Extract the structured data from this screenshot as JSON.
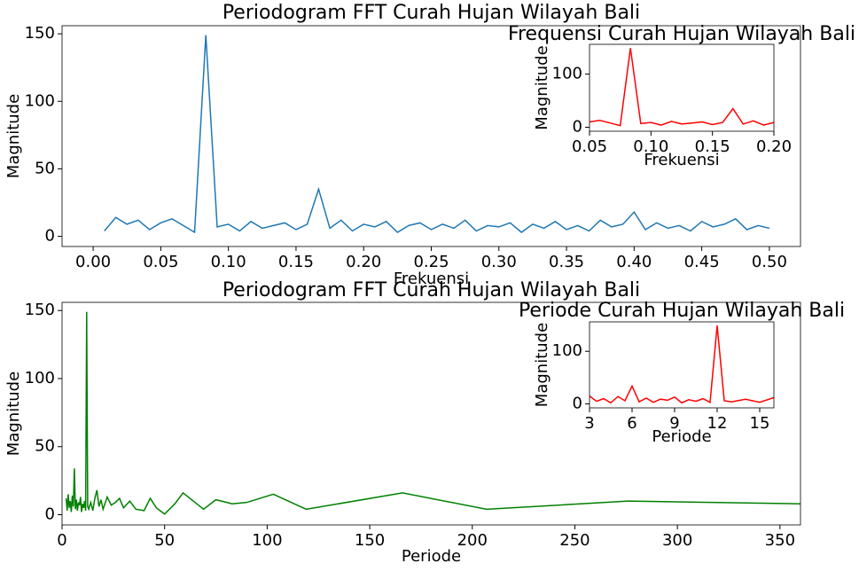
{
  "chart_data": [
    {
      "type": "line",
      "title": "Periodogram FFT Curah Hujan Wilayah Bali",
      "x_label": "Frekuensi",
      "y_label": "Magnitude",
      "x": [
        0.0083,
        0.0167,
        0.025,
        0.0333,
        0.0417,
        0.05,
        0.0583,
        0.0667,
        0.075,
        0.0833,
        0.0917,
        0.1,
        0.1083,
        0.1167,
        0.125,
        0.1333,
        0.1417,
        0.15,
        0.1583,
        0.1667,
        0.175,
        0.1833,
        0.1917,
        0.2,
        0.2083,
        0.2167,
        0.225,
        0.2333,
        0.2417,
        0.25,
        0.2583,
        0.2667,
        0.275,
        0.2833,
        0.2917,
        0.3,
        0.3083,
        0.3167,
        0.325,
        0.3333,
        0.3417,
        0.35,
        0.3583,
        0.3667,
        0.375,
        0.3833,
        0.3917,
        0.4,
        0.4083,
        0.4167,
        0.425,
        0.4333,
        0.4417,
        0.45,
        0.4583,
        0.4667,
        0.475,
        0.4833,
        0.4917,
        0.5
      ],
      "values": [
        4,
        14,
        9,
        12,
        5,
        10,
        13,
        8,
        3,
        149,
        7,
        9,
        4,
        11,
        6,
        8,
        10,
        5,
        9,
        35,
        6,
        12,
        4,
        9,
        7,
        11,
        3,
        8,
        10,
        5,
        9,
        6,
        12,
        4,
        8,
        7,
        10,
        3,
        9,
        6,
        11,
        5,
        8,
        4,
        12,
        7,
        9,
        18,
        5,
        10,
        6,
        8,
        4,
        11,
        7,
        9,
        13,
        5,
        8,
        6
      ],
      "color": "#1f77b4",
      "xlim": [
        -0.023,
        0.523
      ],
      "ylim": [
        -7.5,
        156
      ],
      "xticks": [
        {
          "value": 0,
          "label": "0.00"
        },
        {
          "value": 0.05,
          "label": "0.05"
        },
        {
          "value": 0.1,
          "label": "0.10"
        },
        {
          "value": 0.15,
          "label": "0.15"
        },
        {
          "value": 0.2,
          "label": "0.20"
        },
        {
          "value": 0.25,
          "label": "0.25"
        },
        {
          "value": 0.3,
          "label": "0.30"
        },
        {
          "value": 0.35,
          "label": "0.35"
        },
        {
          "value": 0.4,
          "label": "0.40"
        },
        {
          "value": 0.45,
          "label": "0.45"
        },
        {
          "value": 0.5,
          "label": "0.50"
        }
      ],
      "yticks": [
        0,
        50,
        100,
        150
      ]
    },
    {
      "type": "line",
      "title": "Frequensi Curah Hujan Wilayah Bali",
      "x_label": "Frekuensi",
      "y_label": "Magnitude",
      "x": [
        0.05,
        0.0583,
        0.0667,
        0.075,
        0.0833,
        0.0917,
        0.1,
        0.1083,
        0.1167,
        0.125,
        0.1333,
        0.1417,
        0.15,
        0.1583,
        0.1667,
        0.175,
        0.1833,
        0.1917,
        0.2
      ],
      "values": [
        10,
        13,
        8,
        3,
        149,
        7,
        9,
        4,
        11,
        6,
        8,
        10,
        5,
        9,
        35,
        6,
        12,
        4,
        9
      ],
      "color": "#ff0000",
      "xlim": [
        0.05,
        0.2
      ],
      "ylim": [
        -7.5,
        156
      ],
      "xticks": [
        {
          "value": 0.05,
          "label": "0.05"
        },
        {
          "value": 0.1,
          "label": "0.10"
        },
        {
          "value": 0.15,
          "label": "0.15"
        },
        {
          "value": 0.2,
          "label": "0.20"
        }
      ],
      "yticks": [
        0,
        100
      ]
    },
    {
      "type": "line",
      "title": "Periodogram FFT Curah Hujan Wilayah Bali",
      "x_label": "Periode",
      "y_label": "Magnitude",
      "x": [
        2,
        2.5,
        3,
        3.5,
        4,
        4.5,
        5,
        5.5,
        6,
        6.5,
        7,
        7.5,
        8,
        8.5,
        9,
        9.5,
        10,
        10.5,
        11,
        11.5,
        12,
        12.5,
        13,
        14,
        15,
        16,
        17,
        18,
        19,
        20,
        22,
        24,
        26,
        28,
        30,
        33,
        36,
        40,
        43,
        46,
        50,
        55,
        59,
        69,
        75,
        83,
        90,
        103,
        119,
        166,
        207,
        276,
        360
      ],
      "values": [
        12,
        3,
        15,
        5,
        10,
        2,
        14,
        6,
        34,
        4,
        11,
        3,
        9,
        7,
        13,
        2,
        8,
        5,
        10,
        3,
        149,
        6,
        4,
        9,
        3,
        12,
        18,
        6,
        11,
        4,
        13,
        7,
        9,
        12,
        5,
        10,
        4,
        3,
        12,
        5,
        0.5,
        8,
        16,
        4,
        11,
        8,
        9,
        15,
        4,
        16,
        4,
        10,
        8
      ],
      "color": "#008000",
      "xlim": [
        0,
        360
      ],
      "ylim": [
        -7.5,
        156
      ],
      "xticks": [
        0,
        50,
        100,
        150,
        200,
        250,
        300,
        350
      ],
      "yticks": [
        0,
        50,
        100,
        150
      ]
    },
    {
      "type": "line",
      "title": "Periode Curah Hujan Wilayah Bali",
      "x_label": "Periode",
      "y_label": "Magnitude",
      "x": [
        3,
        3.5,
        4,
        4.5,
        5,
        5.5,
        6,
        6.5,
        7,
        7.5,
        8,
        8.5,
        9,
        9.5,
        10,
        10.5,
        11,
        11.5,
        12,
        12.5,
        13,
        14,
        15,
        16
      ],
      "values": [
        15,
        5,
        10,
        2,
        14,
        6,
        34,
        4,
        11,
        3,
        9,
        7,
        13,
        2,
        8,
        5,
        10,
        3,
        149,
        6,
        4,
        9,
        3,
        12
      ],
      "color": "#ff0000",
      "xlim": [
        3,
        16
      ],
      "ylim": [
        -7.5,
        156
      ],
      "xticks": [
        3,
        6,
        9,
        12,
        15
      ],
      "yticks": [
        0,
        100
      ]
    }
  ]
}
